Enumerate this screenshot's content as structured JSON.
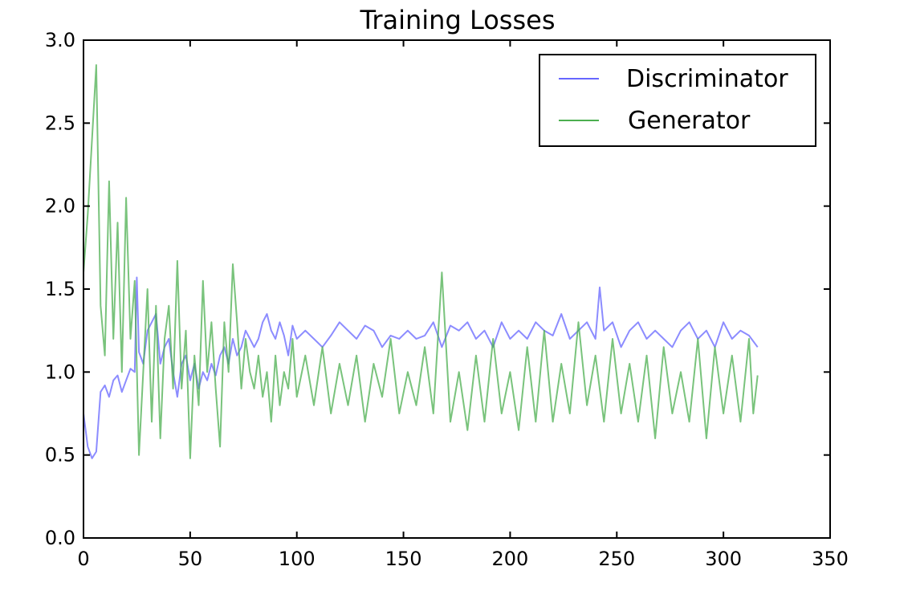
{
  "chart_data": {
    "type": "line",
    "title": "Training Losses",
    "xlabel": "",
    "ylabel": "",
    "xlim": [
      0,
      350
    ],
    "ylim": [
      0.0,
      3.0
    ],
    "xticks": [
      "0",
      "50",
      "100",
      "150",
      "200",
      "250",
      "300",
      "350"
    ],
    "yticks": [
      "0.0",
      "0.5",
      "1.0",
      "1.5",
      "2.0",
      "2.5",
      "3.0"
    ],
    "grid": false,
    "legend_position": "top-right",
    "series": [
      {
        "name": "Discriminator",
        "color": "#6666ff",
        "x": [
          0,
          2,
          4,
          6,
          8,
          10,
          12,
          14,
          16,
          18,
          20,
          22,
          24,
          25,
          26,
          28,
          30,
          32,
          34,
          36,
          38,
          40,
          42,
          44,
          46,
          48,
          50,
          52,
          54,
          56,
          58,
          60,
          62,
          64,
          66,
          68,
          70,
          72,
          74,
          76,
          78,
          80,
          82,
          84,
          86,
          88,
          90,
          92,
          94,
          96,
          98,
          100,
          104,
          108,
          112,
          116,
          120,
          124,
          128,
          132,
          136,
          140,
          144,
          148,
          152,
          156,
          160,
          164,
          168,
          172,
          176,
          180,
          184,
          188,
          192,
          196,
          200,
          204,
          208,
          212,
          216,
          220,
          224,
          228,
          232,
          236,
          240,
          242,
          244,
          248,
          252,
          256,
          260,
          264,
          268,
          272,
          276,
          280,
          284,
          288,
          292,
          296,
          300,
          304,
          308,
          312,
          316
        ],
        "y": [
          0.75,
          0.55,
          0.48,
          0.52,
          0.88,
          0.92,
          0.85,
          0.95,
          0.98,
          0.88,
          0.95,
          1.02,
          1.0,
          1.57,
          1.12,
          1.05,
          1.25,
          1.3,
          1.35,
          1.05,
          1.15,
          1.2,
          1.0,
          0.85,
          1.05,
          1.1,
          0.95,
          1.05,
          0.9,
          1.0,
          0.95,
          1.05,
          0.98,
          1.1,
          1.15,
          1.05,
          1.2,
          1.1,
          1.15,
          1.25,
          1.2,
          1.15,
          1.2,
          1.3,
          1.35,
          1.25,
          1.2,
          1.3,
          1.22,
          1.1,
          1.28,
          1.2,
          1.25,
          1.2,
          1.15,
          1.22,
          1.3,
          1.25,
          1.2,
          1.28,
          1.25,
          1.15,
          1.22,
          1.2,
          1.25,
          1.2,
          1.22,
          1.3,
          1.15,
          1.28,
          1.25,
          1.3,
          1.2,
          1.25,
          1.15,
          1.3,
          1.2,
          1.25,
          1.2,
          1.3,
          1.25,
          1.22,
          1.35,
          1.2,
          1.25,
          1.3,
          1.2,
          1.51,
          1.25,
          1.3,
          1.15,
          1.25,
          1.3,
          1.2,
          1.25,
          1.2,
          1.15,
          1.25,
          1.3,
          1.2,
          1.25,
          1.15,
          1.3,
          1.2,
          1.25,
          1.22,
          1.15
        ]
      },
      {
        "name": "Generator",
        "color": "#4caf50",
        "x": [
          0,
          2,
          4,
          6,
          8,
          10,
          12,
          14,
          16,
          18,
          20,
          22,
          24,
          26,
          28,
          30,
          32,
          34,
          36,
          38,
          40,
          42,
          44,
          46,
          48,
          50,
          52,
          54,
          56,
          58,
          60,
          62,
          64,
          66,
          68,
          70,
          72,
          74,
          76,
          78,
          80,
          82,
          84,
          86,
          88,
          90,
          92,
          94,
          96,
          98,
          100,
          104,
          108,
          112,
          116,
          120,
          124,
          128,
          132,
          136,
          140,
          144,
          148,
          152,
          156,
          160,
          164,
          168,
          172,
          176,
          180,
          184,
          188,
          192,
          196,
          200,
          204,
          208,
          212,
          216,
          220,
          224,
          228,
          232,
          236,
          240,
          244,
          248,
          252,
          256,
          260,
          264,
          268,
          272,
          276,
          280,
          284,
          288,
          292,
          296,
          300,
          304,
          308,
          312,
          314,
          316
        ],
        "y": [
          1.6,
          1.95,
          2.4,
          2.85,
          1.4,
          1.1,
          2.15,
          1.2,
          1.9,
          1.0,
          2.05,
          1.2,
          1.55,
          0.5,
          1.0,
          1.5,
          0.7,
          1.4,
          0.6,
          1.2,
          1.4,
          0.9,
          1.67,
          0.9,
          1.25,
          0.48,
          1.1,
          0.8,
          1.55,
          1.0,
          1.3,
          0.9,
          0.55,
          1.3,
          1.0,
          1.65,
          1.3,
          0.9,
          1.2,
          1.0,
          0.9,
          1.1,
          0.85,
          1.0,
          0.7,
          1.1,
          0.8,
          1.0,
          0.9,
          1.2,
          0.85,
          1.1,
          0.8,
          1.15,
          0.75,
          1.05,
          0.8,
          1.1,
          0.7,
          1.05,
          0.85,
          1.2,
          0.75,
          1.0,
          0.8,
          1.15,
          0.75,
          1.6,
          0.7,
          1.0,
          0.65,
          1.1,
          0.7,
          1.2,
          0.75,
          1.0,
          0.65,
          1.15,
          0.7,
          1.25,
          0.7,
          1.05,
          0.75,
          1.3,
          0.8,
          1.1,
          0.7,
          1.2,
          0.75,
          1.05,
          0.7,
          1.1,
          0.6,
          1.15,
          0.75,
          1.0,
          0.7,
          1.2,
          0.6,
          1.15,
          0.75,
          1.1,
          0.7,
          1.2,
          0.75,
          0.98
        ]
      }
    ]
  }
}
